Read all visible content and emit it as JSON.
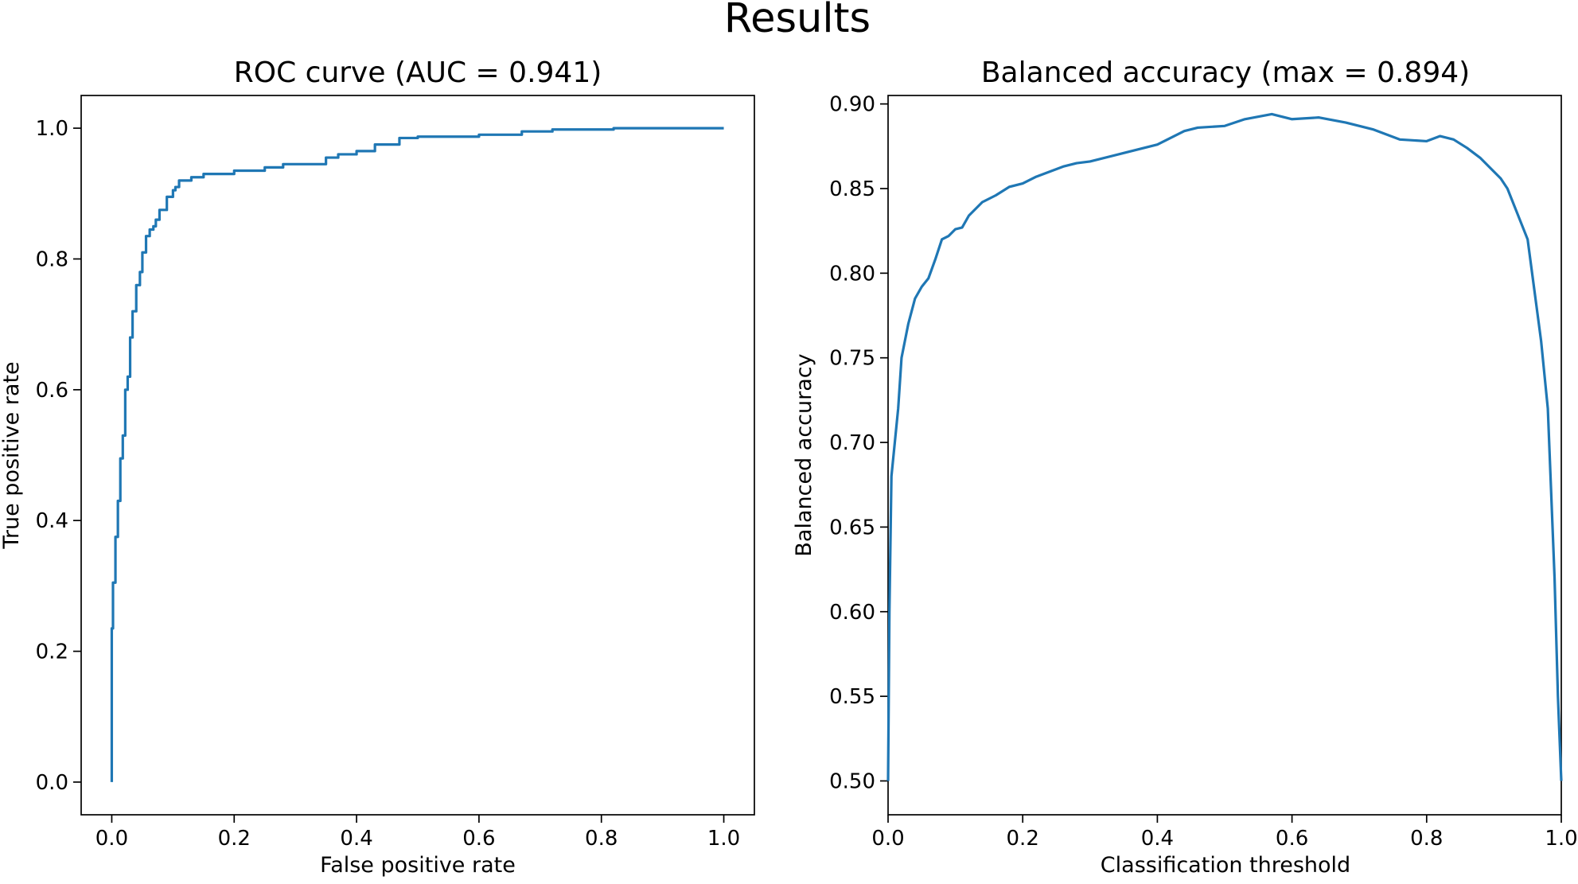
{
  "figure": {
    "title": "Results"
  },
  "colors": {
    "line": "#1f77b4",
    "axes": "#000000",
    "background": "#ffffff"
  },
  "chart_data": [
    {
      "type": "line",
      "title": "ROC curve (AUC = 0.941)",
      "xlabel": "False positive rate",
      "ylabel": "True positive rate",
      "xlim": [
        -0.05,
        1.05
      ],
      "ylim": [
        -0.05,
        1.05
      ],
      "xticks": [
        0.0,
        0.2,
        0.4,
        0.6,
        0.8,
        1.0
      ],
      "xtick_labels": [
        "0.0",
        "0.2",
        "0.4",
        "0.6",
        "0.8",
        "1.0"
      ],
      "yticks": [
        0.0,
        0.2,
        0.4,
        0.6,
        0.8,
        1.0
      ],
      "ytick_labels": [
        "0.0",
        "0.2",
        "0.4",
        "0.6",
        "0.8",
        "1.0"
      ],
      "grid": false,
      "series": [
        {
          "x": [
            0.0,
            0.0,
            0.002,
            0.002,
            0.006,
            0.006,
            0.01,
            0.01,
            0.014,
            0.014,
            0.018,
            0.018,
            0.022,
            0.022,
            0.026,
            0.026,
            0.03,
            0.03,
            0.034,
            0.034,
            0.04,
            0.04,
            0.046,
            0.046,
            0.05,
            0.05,
            0.056,
            0.056,
            0.062,
            0.062,
            0.068,
            0.068,
            0.072,
            0.072,
            0.078,
            0.078,
            0.09,
            0.09,
            0.1,
            0.1,
            0.104,
            0.104,
            0.11,
            0.11,
            0.13,
            0.13,
            0.15,
            0.15,
            0.2,
            0.2,
            0.25,
            0.25,
            0.28,
            0.28,
            0.35,
            0.35,
            0.37,
            0.37,
            0.4,
            0.4,
            0.43,
            0.43,
            0.47,
            0.47,
            0.5,
            0.5,
            0.6,
            0.6,
            0.67,
            0.67,
            0.72,
            0.72,
            0.82,
            0.82,
            1.0
          ],
          "y": [
            0.0,
            0.235,
            0.235,
            0.305,
            0.305,
            0.375,
            0.375,
            0.43,
            0.43,
            0.495,
            0.495,
            0.53,
            0.53,
            0.6,
            0.6,
            0.62,
            0.62,
            0.68,
            0.68,
            0.72,
            0.72,
            0.76,
            0.76,
            0.78,
            0.78,
            0.81,
            0.81,
            0.835,
            0.835,
            0.845,
            0.845,
            0.85,
            0.85,
            0.86,
            0.86,
            0.875,
            0.875,
            0.895,
            0.895,
            0.905,
            0.905,
            0.91,
            0.91,
            0.92,
            0.92,
            0.925,
            0.925,
            0.93,
            0.93,
            0.935,
            0.935,
            0.94,
            0.94,
            0.945,
            0.945,
            0.955,
            0.955,
            0.96,
            0.96,
            0.965,
            0.965,
            0.975,
            0.975,
            0.985,
            0.985,
            0.987,
            0.987,
            0.99,
            0.99,
            0.995,
            0.995,
            0.998,
            0.998,
            1.0,
            1.0
          ]
        }
      ]
    },
    {
      "type": "line",
      "title": "Balanced accuracy (max = 0.894)",
      "xlabel": "Classification threshold",
      "ylabel": "Balanced accuracy",
      "xlim": [
        0.0,
        1.0
      ],
      "ylim": [
        0.48,
        0.905
      ],
      "xticks": [
        0.0,
        0.2,
        0.4,
        0.6,
        0.8,
        1.0
      ],
      "xtick_labels": [
        "0.0",
        "0.2",
        "0.4",
        "0.6",
        "0.8",
        "1.0"
      ],
      "yticks": [
        0.5,
        0.55,
        0.6,
        0.65,
        0.7,
        0.75,
        0.8,
        0.85,
        0.9
      ],
      "ytick_labels": [
        "0.50",
        "0.55",
        "0.60",
        "0.65",
        "0.70",
        "0.75",
        "0.80",
        "0.85",
        "0.90"
      ],
      "grid": false,
      "series": [
        {
          "x": [
            0.0,
            0.002,
            0.005,
            0.01,
            0.015,
            0.02,
            0.025,
            0.03,
            0.04,
            0.05,
            0.06,
            0.07,
            0.08,
            0.09,
            0.1,
            0.11,
            0.12,
            0.14,
            0.16,
            0.18,
            0.2,
            0.22,
            0.24,
            0.26,
            0.28,
            0.3,
            0.35,
            0.4,
            0.44,
            0.46,
            0.5,
            0.53,
            0.57,
            0.6,
            0.64,
            0.68,
            0.72,
            0.76,
            0.8,
            0.82,
            0.84,
            0.86,
            0.88,
            0.9,
            0.91,
            0.92,
            0.93,
            0.94,
            0.95,
            0.96,
            0.97,
            0.98,
            0.99,
            0.995,
            1.0
          ],
          "y": [
            0.5,
            0.6,
            0.68,
            0.7,
            0.72,
            0.75,
            0.76,
            0.77,
            0.785,
            0.792,
            0.797,
            0.808,
            0.82,
            0.822,
            0.826,
            0.827,
            0.834,
            0.842,
            0.846,
            0.851,
            0.853,
            0.857,
            0.86,
            0.863,
            0.865,
            0.866,
            0.871,
            0.876,
            0.884,
            0.886,
            0.887,
            0.891,
            0.894,
            0.891,
            0.892,
            0.889,
            0.885,
            0.879,
            0.878,
            0.881,
            0.879,
            0.874,
            0.868,
            0.86,
            0.856,
            0.85,
            0.84,
            0.83,
            0.82,
            0.79,
            0.76,
            0.72,
            0.62,
            0.55,
            0.5
          ]
        }
      ]
    }
  ]
}
